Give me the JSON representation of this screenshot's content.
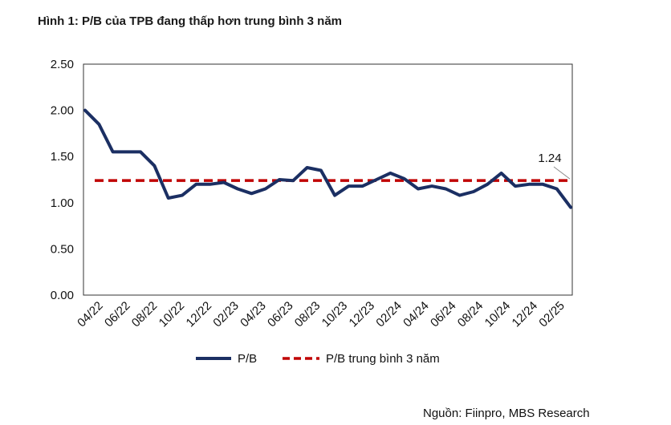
{
  "figure": {
    "title": "Hình 1: P/B của TPB đang thấp hơn trung bình 3 năm",
    "source": "Nguồn: Fiinpro, MBS Research"
  },
  "chart_data": {
    "type": "line",
    "x_tick_labels": [
      "04/22",
      "06/22",
      "08/22",
      "10/22",
      "12/22",
      "02/23",
      "04/23",
      "06/23",
      "08/23",
      "10/23",
      "12/23",
      "02/24",
      "04/24",
      "06/24",
      "08/24",
      "10/24",
      "12/24",
      "02/25"
    ],
    "y_tick_labels": [
      "0.00",
      "0.50",
      "1.00",
      "1.50",
      "2.00",
      "2.50"
    ],
    "ylim": [
      0,
      2.5
    ],
    "grid": false,
    "legend_position": "bottom",
    "series": [
      {
        "name": "P/B",
        "color": "#1b2f63",
        "style": "solid",
        "x": [
          "04/22",
          "05/22",
          "06/22",
          "07/22",
          "08/22",
          "09/22",
          "10/22",
          "11/22",
          "12/22",
          "01/23",
          "02/23",
          "03/23",
          "04/23",
          "05/23",
          "06/23",
          "07/23",
          "08/23",
          "09/23",
          "10/23",
          "11/23",
          "12/23",
          "01/24",
          "02/24",
          "03/24",
          "04/24",
          "05/24",
          "06/24",
          "07/24",
          "08/24",
          "09/24",
          "10/24",
          "11/24",
          "12/24",
          "01/25",
          "02/25",
          "03/25"
        ],
        "values": [
          2.0,
          1.85,
          1.55,
          1.55,
          1.55,
          1.4,
          1.05,
          1.08,
          1.2,
          1.2,
          1.22,
          1.15,
          1.1,
          1.15,
          1.25,
          1.24,
          1.38,
          1.35,
          1.08,
          1.18,
          1.18,
          1.25,
          1.32,
          1.26,
          1.15,
          1.18,
          1.15,
          1.08,
          1.12,
          1.2,
          1.32,
          1.18,
          1.2,
          1.2,
          1.15,
          0.95
        ]
      },
      {
        "name": "P/B trung bình 3 năm",
        "color": "#c00000",
        "style": "dashed",
        "values": [
          1.24
        ]
      }
    ],
    "annotations": [
      {
        "text": "1.24",
        "value": 1.24
      }
    ]
  }
}
